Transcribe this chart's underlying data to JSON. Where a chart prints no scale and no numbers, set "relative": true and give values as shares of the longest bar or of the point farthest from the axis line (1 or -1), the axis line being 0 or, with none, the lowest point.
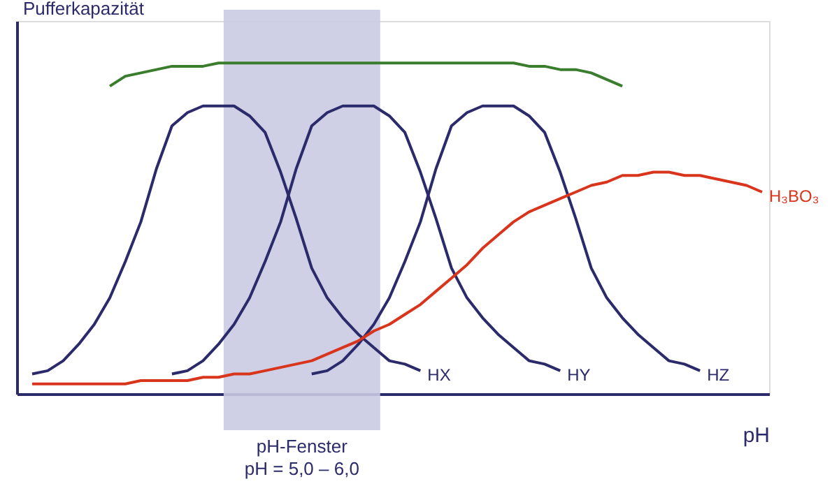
{
  "chart_data": {
    "type": "line",
    "xlabel": "pH",
    "ylabel": "Pufferkapazität",
    "relative": true,
    "grid": false,
    "tick_labels": false,
    "marker": "none",
    "line_style": "solid",
    "categories": [
      null,
      null,
      null,
      null,
      null,
      null,
      null,
      null,
      null,
      null,
      null,
      null,
      null,
      null,
      null,
      null,
      null,
      null,
      null,
      null,
      null,
      null,
      null,
      null,
      null,
      null,
      null,
      null,
      null,
      null,
      null,
      null,
      null,
      null,
      null,
      null,
      null,
      null,
      null,
      null,
      null,
      null,
      null,
      null,
      null,
      null,
      null,
      null
    ],
    "annotations": [
      "pH-Fenster",
      "pH = 5,0 – 6,0"
    ],
    "series": [
      {
        "color": "#3a7d2c",
        "values": [
          null,
          null,
          null,
          null,
          null,
          0.93,
          0.96,
          0.97,
          0.98,
          0.99,
          0.99,
          0.99,
          1,
          1,
          1,
          1,
          1,
          1,
          1,
          1,
          1,
          1,
          1,
          1,
          1,
          1,
          1,
          1,
          1,
          1,
          1,
          1,
          0.99,
          0.99,
          0.98,
          0.98,
          0.97,
          0.95,
          0.93,
          null,
          null,
          null,
          null,
          null,
          null,
          null,
          null,
          null
        ]
      },
      {
        "name": "HX",
        "color": "#2b2a6b",
        "values": [
          0.06,
          0.07,
          0.1,
          0.15,
          0.21,
          0.29,
          0.4,
          0.52,
          0.68,
          0.81,
          0.85,
          0.87,
          0.87,
          0.87,
          0.84,
          0.79,
          0.67,
          0.53,
          0.38,
          0.29,
          0.23,
          0.18,
          0.14,
          0.1,
          0.09,
          0.07,
          null,
          null,
          null,
          null,
          null,
          null,
          null,
          null,
          null,
          null,
          null,
          null,
          null,
          null,
          null,
          null,
          null,
          null,
          null,
          null,
          null,
          null
        ]
      },
      {
        "name": "HY",
        "color": "#2b2a6b",
        "values": [
          null,
          null,
          null,
          null,
          null,
          null,
          null,
          null,
          null,
          0.06,
          0.07,
          0.1,
          0.15,
          0.21,
          0.29,
          0.4,
          0.52,
          0.68,
          0.81,
          0.85,
          0.87,
          0.87,
          0.87,
          0.84,
          0.79,
          0.67,
          0.53,
          0.38,
          0.29,
          0.23,
          0.18,
          0.14,
          0.1,
          0.09,
          0.07,
          null,
          null,
          null,
          null,
          null,
          null,
          null,
          null,
          null,
          null,
          null,
          null,
          null
        ]
      },
      {
        "name": "HZ",
        "color": "#2b2a6b",
        "values": [
          null,
          null,
          null,
          null,
          null,
          null,
          null,
          null,
          null,
          null,
          null,
          null,
          null,
          null,
          null,
          null,
          null,
          null,
          0.06,
          0.07,
          0.1,
          0.15,
          0.21,
          0.29,
          0.4,
          0.52,
          0.68,
          0.81,
          0.85,
          0.87,
          0.87,
          0.87,
          0.84,
          0.79,
          0.67,
          0.53,
          0.38,
          0.29,
          0.23,
          0.18,
          0.14,
          0.1,
          0.09,
          0.07,
          null,
          null,
          null,
          null
        ]
      },
      {
        "name": "H₃BO₃",
        "color": "#d9341c",
        "values": [
          0.03,
          0.03,
          0.03,
          0.03,
          0.03,
          0.03,
          0.03,
          0.04,
          0.04,
          0.04,
          0.04,
          0.05,
          0.05,
          0.06,
          0.06,
          0.07,
          0.08,
          0.09,
          0.1,
          0.12,
          0.14,
          0.16,
          0.19,
          0.21,
          0.24,
          0.27,
          0.31,
          0.35,
          0.39,
          0.44,
          0.48,
          0.52,
          0.55,
          0.57,
          0.59,
          0.61,
          0.63,
          0.64,
          0.66,
          0.66,
          0.67,
          0.67,
          0.66,
          0.66,
          0.65,
          0.64,
          0.63,
          0.61
        ]
      }
    ]
  }
}
